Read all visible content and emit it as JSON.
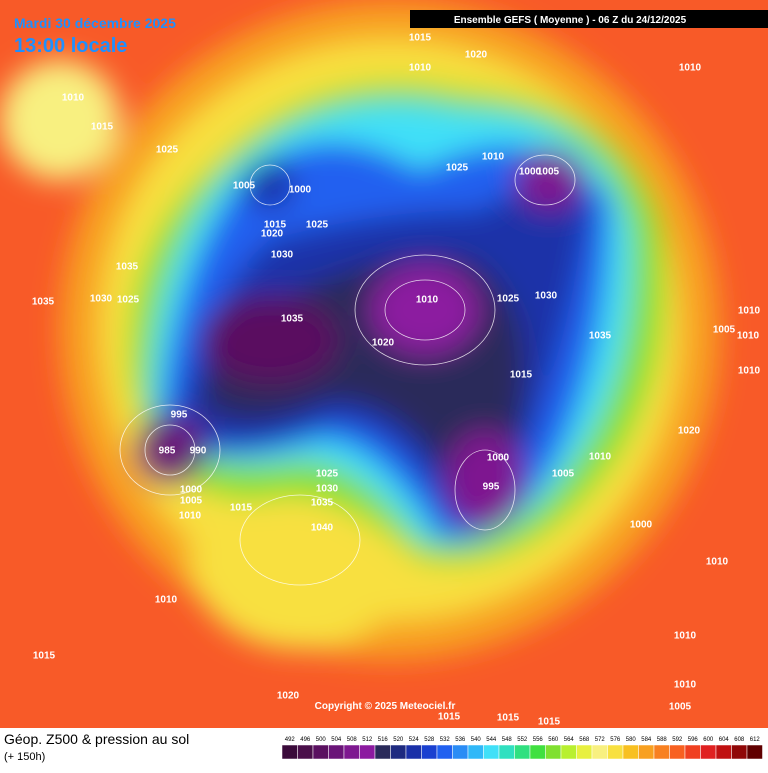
{
  "header": {
    "date": "Mardi 30 décembre 2025",
    "time": "13:00 locale",
    "run": "Ensemble GEFS  ( Moyenne )  -  06 Z du 24/12/2025"
  },
  "footer": {
    "title": "Géop. Z500 & pression au sol",
    "lead": "(+ 150h)",
    "copyright": "Copyright © 2025 Meteociel.fr"
  },
  "colorbar": {
    "values": [
      492,
      496,
      500,
      504,
      508,
      512,
      516,
      520,
      524,
      528,
      532,
      536,
      540,
      544,
      548,
      552,
      556,
      560,
      564,
      568,
      572,
      576,
      580,
      584,
      588,
      592,
      596,
      600,
      604,
      608,
      612
    ],
    "colors": [
      "#3a0a3a",
      "#4a0f4a",
      "#5a1060",
      "#6a1478",
      "#7e1890",
      "#8c1aa0",
      "#2a2a5a",
      "#1e2a80",
      "#1a30a8",
      "#1a40d0",
      "#2060f0",
      "#2a8cf5",
      "#30b8f8",
      "#40e0f8",
      "#30e0c0",
      "#30e080",
      "#40e040",
      "#80e030",
      "#b8f030",
      "#e8f040",
      "#f8f080",
      "#f8e040",
      "#f8c020",
      "#f8a020",
      "#f88020",
      "#f86020",
      "#f04020",
      "#e02020",
      "#c01010",
      "#900808",
      "#600000"
    ]
  },
  "isobar_labels": [
    1015,
    1010,
    1020,
    1010,
    1010,
    1015,
    1025,
    1005,
    1000,
    1015,
    1025,
    1020,
    1025,
    1010,
    1005,
    1000,
    1030,
    1035,
    1030,
    1025,
    1035,
    1035,
    1010,
    1025,
    1030,
    1020,
    1010,
    1005,
    1010,
    1035,
    1015,
    1010,
    995,
    985,
    990,
    1020,
    1000,
    1010,
    1005,
    1025,
    1030,
    995,
    1035,
    1000,
    1005,
    1010,
    1015,
    1040,
    1000,
    1010,
    1010,
    1010,
    1015,
    1010,
    1020,
    1005,
    1015,
    1015,
    1015
  ]
}
